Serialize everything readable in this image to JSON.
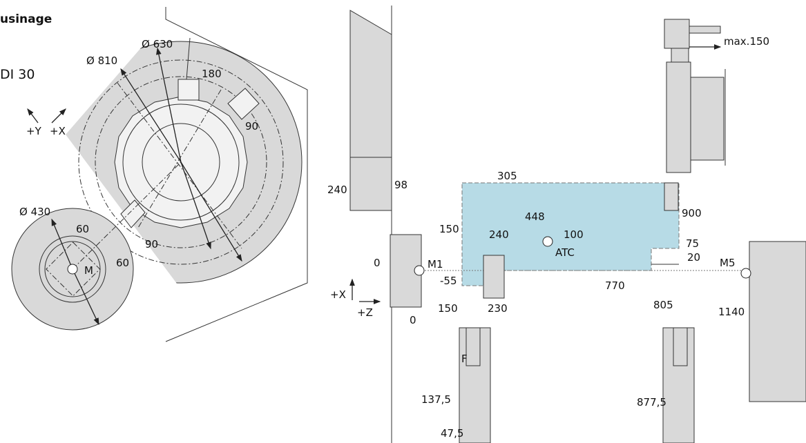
{
  "header": {
    "title": "usinage",
    "subtitle": "DI 30"
  },
  "left": {
    "labels": [
      "+Y",
      "+X",
      "Ø 630",
      "Ø 810",
      "180",
      "90",
      "Ø 430",
      "60",
      "60",
      "90",
      "M"
    ]
  },
  "right": {
    "labels": [
      "max.150",
      "240",
      "98",
      "305",
      "150",
      "240",
      "448",
      "100",
      "ATC",
      "900",
      "75",
      "0",
      "M1",
      "20",
      "M5",
      "-55",
      "770",
      "+X",
      "150",
      "230",
      "805",
      "1140",
      "+Z",
      "0",
      "F",
      "137,5",
      "877,5",
      "47,5"
    ]
  }
}
